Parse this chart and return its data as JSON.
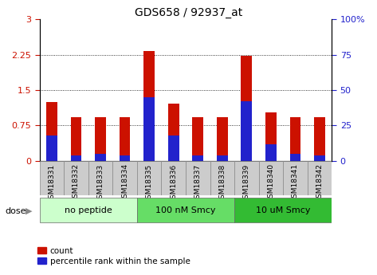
{
  "title": "GDS658 / 92937_at",
  "samples": [
    "GSM18331",
    "GSM18332",
    "GSM18333",
    "GSM18334",
    "GSM18335",
    "GSM18336",
    "GSM18337",
    "GSM18338",
    "GSM18339",
    "GSM18340",
    "GSM18341",
    "GSM18342"
  ],
  "count_values": [
    1.25,
    0.92,
    0.92,
    0.92,
    2.32,
    1.22,
    0.92,
    0.92,
    2.22,
    1.02,
    0.92,
    0.92
  ],
  "percentile_values": [
    18,
    4,
    5,
    4,
    45,
    18,
    4,
    4,
    42,
    12,
    5,
    4
  ],
  "bar_color": "#cc1100",
  "percentile_color": "#2222cc",
  "ylim_left": [
    0,
    3
  ],
  "ylim_right": [
    0,
    100
  ],
  "yticks_left": [
    0,
    0.75,
    1.5,
    2.25,
    3
  ],
  "yticks_right": [
    0,
    25,
    50,
    75,
    100
  ],
  "ytick_labels_left": [
    "0",
    "0.75",
    "1.5",
    "2.25",
    "3"
  ],
  "ytick_labels_right": [
    "0",
    "25",
    "50",
    "75",
    "100%"
  ],
  "groups": [
    {
      "label": "no peptide",
      "start": 0,
      "end": 4,
      "color": "#ccffcc"
    },
    {
      "label": "100 nM Smcy",
      "start": 4,
      "end": 8,
      "color": "#66dd66"
    },
    {
      "label": "10 uM Smcy",
      "start": 8,
      "end": 12,
      "color": "#33bb33"
    }
  ],
  "dose_label": "dose",
  "legend_count": "count",
  "legend_percentile": "percentile rank within the sample",
  "bar_width": 0.45,
  "tick_label_color_left": "#cc1100",
  "tick_label_color_right": "#2222cc",
  "sample_bg_color": "#cccccc"
}
